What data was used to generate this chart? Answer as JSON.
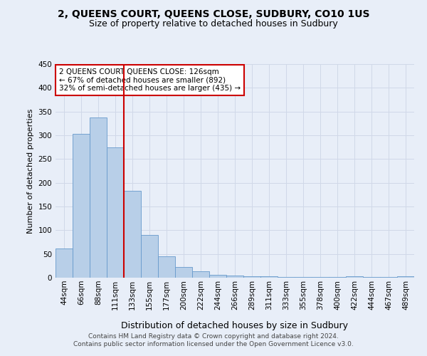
{
  "title1": "2, QUEENS COURT, QUEENS CLOSE, SUDBURY, CO10 1US",
  "title2": "Size of property relative to detached houses in Sudbury",
  "xlabel": "Distribution of detached houses by size in Sudbury",
  "ylabel": "Number of detached properties",
  "footer1": "Contains HM Land Registry data © Crown copyright and database right 2024.",
  "footer2": "Contains public sector information licensed under the Open Government Licence v3.0.",
  "annotation_line1": "2 QUEENS COURT QUEENS CLOSE: 126sqm",
  "annotation_line2": "← 67% of detached houses are smaller (892)",
  "annotation_line3": "32% of semi-detached houses are larger (435) →",
  "bar_labels": [
    "44sqm",
    "66sqm",
    "88sqm",
    "111sqm",
    "133sqm",
    "155sqm",
    "177sqm",
    "200sqm",
    "222sqm",
    "244sqm",
    "266sqm",
    "289sqm",
    "311sqm",
    "333sqm",
    "355sqm",
    "378sqm",
    "400sqm",
    "422sqm",
    "444sqm",
    "467sqm",
    "489sqm"
  ],
  "bar_values": [
    61,
    303,
    337,
    274,
    183,
    90,
    45,
    23,
    14,
    6,
    4,
    3,
    3,
    2,
    2,
    1,
    1,
    3,
    1,
    1,
    3
  ],
  "bar_color": "#b8cfe8",
  "bar_edge_color": "#6699cc",
  "vline_color": "#cc0000",
  "vline_x_idx": 3.5,
  "annotation_box_facecolor": "#ffffff",
  "annotation_box_edgecolor": "#cc0000",
  "grid_color": "#d0d8e8",
  "background_color": "#e8eef8",
  "ylim": [
    0,
    450
  ],
  "yticks": [
    0,
    50,
    100,
    150,
    200,
    250,
    300,
    350,
    400,
    450
  ],
  "title1_fontsize": 10,
  "title2_fontsize": 9,
  "ylabel_fontsize": 8,
  "xlabel_fontsize": 9,
  "tick_fontsize": 7.5,
  "annotation_fontsize": 7.5,
  "footer_fontsize": 6.5
}
